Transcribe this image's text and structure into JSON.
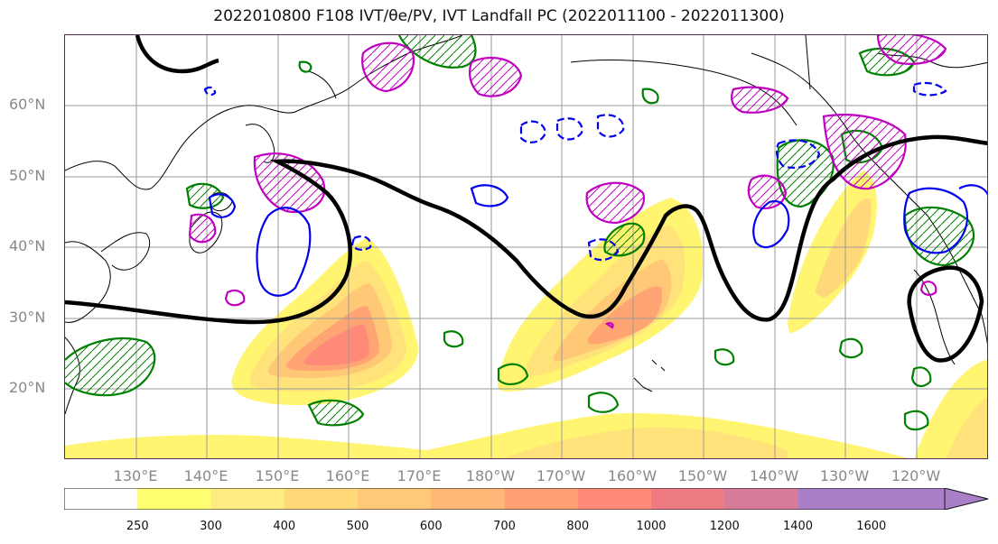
{
  "title": "2022010800 F108 IVT/θe/PV, IVT Landfall PC (2022011100 - 2022011300)",
  "lat_labels": [
    "60°N",
    "50°N",
    "40°N",
    "30°N",
    "20°N"
  ],
  "lon_labels": [
    "130°E",
    "140°E",
    "150°E",
    "160°E",
    "170°E",
    "180°W",
    "170°W",
    "160°W",
    "150°W",
    "140°W",
    "130°W",
    "120°W"
  ],
  "colorbar": {
    "ticks": [
      "250",
      "300",
      "400",
      "500",
      "600",
      "700",
      "800",
      "1000",
      "1200",
      "1400",
      "1600"
    ],
    "colors": [
      "#ffffff",
      "#fffe70",
      "#ffec80",
      "#ffd979",
      "#ffc977",
      "#ffb877",
      "#ffa074",
      "#ff8a78",
      "#ee7a82",
      "#d67c99",
      "#a97fc8"
    ]
  },
  "legend_colors": {
    "theta_e_contour": "#000000",
    "pv_green": "#008000",
    "pv_magenta": "#c000c0",
    "pv_blue": "#0000ee"
  }
}
